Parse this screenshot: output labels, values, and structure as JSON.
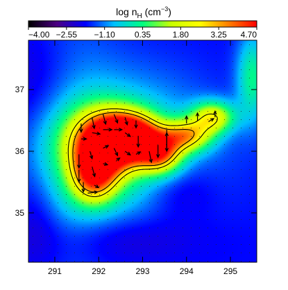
{
  "chart_data": {
    "type": "heatmap",
    "title": "log n",
    "title_sub": "H",
    "title_unit_open": " (cm",
    "title_unit_exp": "−3",
    "title_unit_close": ")",
    "colorbar": {
      "range": [
        -4.0,
        4.7
      ],
      "tick_labels": [
        "−4.00",
        "−2.55",
        "−1.10",
        "0.35",
        "1.80",
        "3.25",
        "4.70"
      ],
      "tick_values": [
        -4.0,
        -2.55,
        -1.1,
        0.35,
        1.8,
        3.25,
        4.7
      ],
      "colormap": [
        "#000000",
        "#4b0082",
        "#0000ff",
        "#00c0ff",
        "#00ff80",
        "#c8ff00",
        "#ffff00",
        "#ff8000",
        "#ff0000"
      ]
    },
    "xlim": [
      290.4,
      295.6
    ],
    "ylim": [
      34.2,
      37.8
    ],
    "x_ticks": [
      291,
      292,
      293,
      294,
      295
    ],
    "y_ticks": [
      35,
      36,
      37
    ],
    "x_tick_labels": [
      "291",
      "292",
      "293",
      "294",
      "295"
    ],
    "y_tick_labels": [
      "35",
      "36",
      "37"
    ],
    "grid": false,
    "field": {
      "background": -1.8,
      "blobs": [
        {
          "x": 292.2,
          "y": 36.15,
          "sx": 0.55,
          "sy": 0.35,
          "v": 6.2
        },
        {
          "x": 292.8,
          "y": 36.25,
          "sx": 0.45,
          "sy": 0.25,
          "v": 4.5
        },
        {
          "x": 291.9,
          "y": 35.6,
          "sx": 0.35,
          "sy": 0.3,
          "v": 4.0
        },
        {
          "x": 293.4,
          "y": 35.95,
          "sx": 0.35,
          "sy": 0.22,
          "v": 4.0
        },
        {
          "x": 294.0,
          "y": 36.25,
          "sx": 0.4,
          "sy": 0.18,
          "v": 3.8
        },
        {
          "x": 294.6,
          "y": 36.55,
          "sx": 0.35,
          "sy": 0.18,
          "v": 3.6
        },
        {
          "x": 292.6,
          "y": 36.0,
          "sx": 1.3,
          "sy": 0.8,
          "v": 2.0
        },
        {
          "x": 291.4,
          "y": 36.2,
          "sx": 0.7,
          "sy": 1.2,
          "v": 1.2
        },
        {
          "x": 295.5,
          "y": 37.2,
          "sx": 0.25,
          "sy": 0.5,
          "v": 2.0
        },
        {
          "x": 290.8,
          "y": 37.0,
          "sx": 0.8,
          "sy": 0.6,
          "v": -0.8
        },
        {
          "x": 293.8,
          "y": 35.4,
          "sx": 0.6,
          "sy": 0.35,
          "v": -0.9
        },
        {
          "x": 292.5,
          "y": 34.6,
          "sx": 1.2,
          "sy": 0.3,
          "v": -0.7
        },
        {
          "x": 290.6,
          "y": 35.0,
          "sx": 0.4,
          "sy": 0.6,
          "v": -0.6
        }
      ]
    },
    "contours": [
      2.3,
      3.2
    ],
    "vectors": [
      {
        "x": 291.6,
        "y": 36.45,
        "dx": 0.0,
        "dy": -0.14
      },
      {
        "x": 291.85,
        "y": 36.55,
        "dx": 0.05,
        "dy": -0.18
      },
      {
        "x": 292.1,
        "y": 36.6,
        "dx": 0.06,
        "dy": -0.16
      },
      {
        "x": 292.35,
        "y": 36.6,
        "dx": 0.08,
        "dy": -0.14
      },
      {
        "x": 292.6,
        "y": 36.55,
        "dx": 0.05,
        "dy": -0.12
      },
      {
        "x": 292.85,
        "y": 36.5,
        "dx": 0.0,
        "dy": -0.12
      },
      {
        "x": 291.6,
        "y": 36.2,
        "dx": 0.12,
        "dy": 0.0
      },
      {
        "x": 291.85,
        "y": 36.3,
        "dx": 0.18,
        "dy": -0.02
      },
      {
        "x": 292.1,
        "y": 36.35,
        "dx": 0.2,
        "dy": 0.0
      },
      {
        "x": 292.35,
        "y": 36.35,
        "dx": 0.18,
        "dy": 0.0
      },
      {
        "x": 292.6,
        "y": 36.3,
        "dx": 0.12,
        "dy": -0.06
      },
      {
        "x": 292.9,
        "y": 36.25,
        "dx": 0.0,
        "dy": -0.18
      },
      {
        "x": 291.55,
        "y": 35.95,
        "dx": 0.0,
        "dy": -0.22
      },
      {
        "x": 291.8,
        "y": 36.0,
        "dx": 0.05,
        "dy": -0.12
      },
      {
        "x": 292.1,
        "y": 36.05,
        "dx": 0.12,
        "dy": 0.04
      },
      {
        "x": 292.35,
        "y": 36.05,
        "dx": 0.08,
        "dy": -0.12
      },
      {
        "x": 292.6,
        "y": 36.0,
        "dx": 0.12,
        "dy": -0.06
      },
      {
        "x": 292.85,
        "y": 35.95,
        "dx": 0.1,
        "dy": 0.04
      },
      {
        "x": 293.15,
        "y": 36.0,
        "dx": 0.05,
        "dy": -0.18
      },
      {
        "x": 291.55,
        "y": 35.7,
        "dx": 0.0,
        "dy": -0.2
      },
      {
        "x": 291.85,
        "y": 35.75,
        "dx": 0.06,
        "dy": -0.16
      },
      {
        "x": 292.1,
        "y": 35.8,
        "dx": 0.1,
        "dy": -0.02
      },
      {
        "x": 292.4,
        "y": 35.85,
        "dx": 0.08,
        "dy": 0.04
      },
      {
        "x": 291.65,
        "y": 35.5,
        "dx": 0.0,
        "dy": -0.16
      },
      {
        "x": 291.9,
        "y": 35.45,
        "dx": 0.1,
        "dy": -0.04
      },
      {
        "x": 291.75,
        "y": 35.32,
        "dx": 0.22,
        "dy": 0.02
      },
      {
        "x": 293.55,
        "y": 36.35,
        "dx": 0.0,
        "dy": -0.35
      },
      {
        "x": 293.55,
        "y": 36.0,
        "dx": 0.0,
        "dy": 0.3
      },
      {
        "x": 293.35,
        "y": 36.1,
        "dx": 0.0,
        "dy": -0.2
      },
      {
        "x": 294.0,
        "y": 36.45,
        "dx": 0.0,
        "dy": 0.12
      },
      {
        "x": 294.25,
        "y": 36.5,
        "dx": 0.0,
        "dy": 0.12
      },
      {
        "x": 294.5,
        "y": 36.48,
        "dx": 0.12,
        "dy": 0.05
      },
      {
        "x": 294.65,
        "y": 36.55,
        "dx": 0.0,
        "dy": 0.1
      }
    ]
  }
}
